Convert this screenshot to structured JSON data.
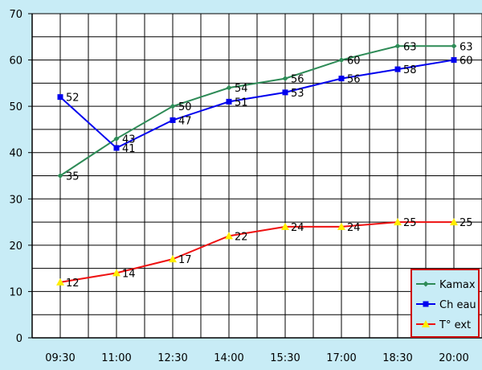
{
  "chart_data": {
    "type": "line",
    "title": "",
    "xlabel": "",
    "ylabel": "",
    "categories": [
      "09:30",
      "11:00",
      "12:30",
      "14:00",
      "15:30",
      "17:00",
      "18:30",
      "20:00"
    ],
    "ylim": [
      0,
      70
    ],
    "y_ticks": [
      "0",
      "10",
      "20",
      "30",
      "40",
      "50",
      "60",
      "70"
    ],
    "grid": true,
    "legend_position": "bottom-right",
    "series": [
      {
        "name": "Kamax",
        "color": "#2e8b57",
        "marker": "diamond",
        "values": [
          35,
          43,
          50,
          54,
          56,
          60,
          63,
          63
        ]
      },
      {
        "name": "Ch eau",
        "color": "#0000ee",
        "marker": "square",
        "values": [
          52,
          41,
          47,
          51,
          53,
          56,
          58,
          60
        ]
      },
      {
        "name": "T° ext",
        "color": "#ee1111",
        "marker": "triangle",
        "values": [
          12,
          14,
          17,
          22,
          24,
          24,
          25,
          25
        ]
      }
    ]
  }
}
